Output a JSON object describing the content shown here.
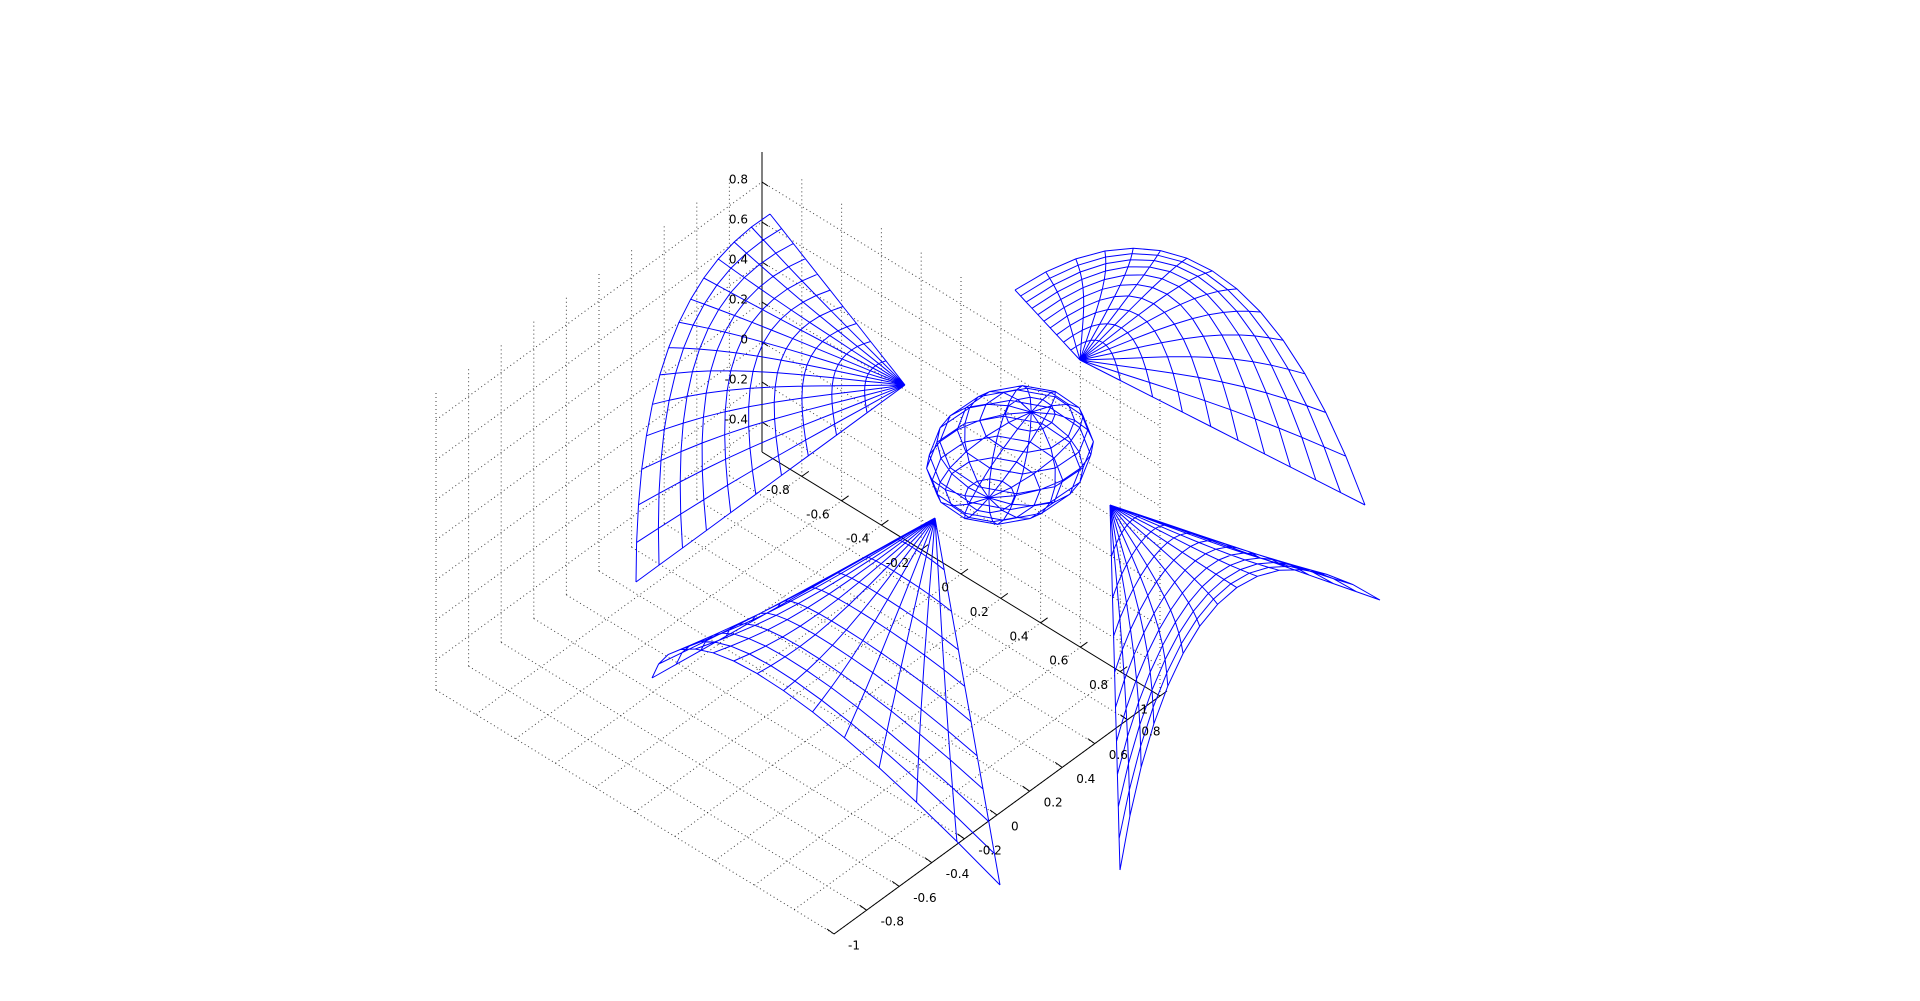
{
  "chart_data": {
    "type": "mesh3d",
    "title": "",
    "xlabel": "",
    "ylabel": "",
    "zlabel": "",
    "mesh_color": "#0000ff",
    "grid": true,
    "x_axis": {
      "lim": [
        -1,
        1
      ],
      "ticks": [
        "-0.8",
        "-0.6",
        "-0.4",
        "-0.2",
        "0",
        "0.2",
        "0.4",
        "0.6",
        "0.8",
        "1"
      ]
    },
    "y_axis": {
      "lim": [
        -1,
        1
      ],
      "ticks": [
        "-1",
        "-0.8",
        "-0.6",
        "-0.4",
        "-0.2",
        "0",
        "0.2",
        "0.4",
        "0.6",
        "0.8"
      ]
    },
    "z_axis": {
      "lim": [
        -0.55,
        0.95
      ],
      "ticks": [
        "-0.4",
        "-0.2",
        "0",
        "0.2",
        "0.4",
        "0.6",
        "0.8"
      ]
    },
    "surfaces": [
      "lobe-upper-left",
      "lobe-upper-right",
      "lobe-lower-left",
      "lobe-lower-right",
      "central-body"
    ]
  }
}
